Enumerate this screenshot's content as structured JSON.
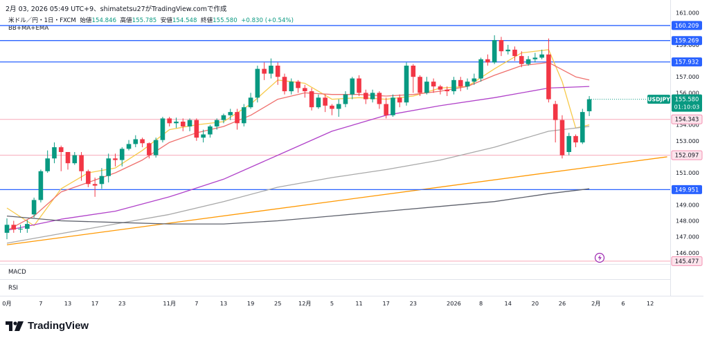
{
  "header": {
    "snapshot": "2月 03, 2026 05:49 UTC+9、shimatetsu27がTradingView.comで作成"
  },
  "symbol": {
    "name": "米ドル／円・1日・FXCM",
    "open_label": "始値",
    "open": "154.846",
    "high_label": "高値",
    "high": "155.785",
    "low_label": "安値",
    "low": "154.548",
    "close_label": "終値",
    "close": "155.580",
    "change": "+0.830 (+0.54%)"
  },
  "indicator_label": "BB+MA+EMA",
  "panes": {
    "macd": "MACD",
    "rsi": "RSI"
  },
  "price_tag": {
    "symbol": "USDJPY",
    "price": "155.580",
    "countdown": "01:10:03"
  },
  "footer": {
    "brand": "TradingView"
  },
  "colors": {
    "up": "#089981",
    "down": "#f23645",
    "blue_line": "#2962ff",
    "pink_line": "#f7a8b8",
    "ma_yellow": "#f7c948",
    "ema_salmon": "#ef6f6c",
    "ma_purple": "#b041c9",
    "ma_gray": "#a8a8a8",
    "ma_dark": "#5d606b",
    "trend_orange": "#ff9800"
  },
  "chart_data": {
    "type": "candlestick",
    "ylim": [
      145.3,
      161.2
    ],
    "y_ticks": [
      {
        "label": "161.000",
        "v": 161
      },
      {
        "label": "159.000",
        "v": 159
      },
      {
        "label": "157.000",
        "v": 157
      },
      {
        "label": "156.000",
        "v": 156
      },
      {
        "label": "154.000",
        "v": 154
      },
      {
        "label": "153.000",
        "v": 153
      },
      {
        "label": "151.000",
        "v": 151
      },
      {
        "label": "149.000",
        "v": 149
      },
      {
        "label": "148.000",
        "v": 148
      },
      {
        "label": "147.000",
        "v": 147
      },
      {
        "label": "146.000",
        "v": 146
      }
    ],
    "x_labels": [
      {
        "label": "0月",
        "i": 0
      },
      {
        "label": "7",
        "i": 5
      },
      {
        "label": "13",
        "i": 9
      },
      {
        "label": "17",
        "i": 13
      },
      {
        "label": "23",
        "i": 17
      },
      {
        "label": "11月",
        "i": 24
      },
      {
        "label": "7",
        "i": 28
      },
      {
        "label": "13",
        "i": 32
      },
      {
        "label": "19",
        "i": 36
      },
      {
        "label": "25",
        "i": 40
      },
      {
        "label": "12月",
        "i": 44
      },
      {
        "label": "5",
        "i": 48
      },
      {
        "label": "11",
        "i": 52
      },
      {
        "label": "17",
        "i": 56
      },
      {
        "label": "23",
        "i": 60
      },
      {
        "label": "2026",
        "i": 66
      },
      {
        "label": "8",
        "i": 70
      },
      {
        "label": "14",
        "i": 74
      },
      {
        "label": "20",
        "i": 78
      },
      {
        "label": "26",
        "i": 82
      },
      {
        "label": "2月",
        "i": 87
      },
      {
        "label": "6",
        "i": 91
      },
      {
        "label": "12",
        "i": 95
      }
    ],
    "horizontal_levels": [
      {
        "label": "160.209",
        "v": 160.209,
        "style": "blue"
      },
      {
        "label": "159.269",
        "v": 159.269,
        "style": "blue"
      },
      {
        "label": "157.932",
        "v": 157.932,
        "style": "blue"
      },
      {
        "label": "154.343",
        "v": 154.343,
        "style": "pink"
      },
      {
        "label": "152.097",
        "v": 152.097,
        "style": "pink"
      },
      {
        "label": "149.951",
        "v": 149.951,
        "style": "blue"
      },
      {
        "label": "145.477",
        "v": 145.477,
        "style": "pink"
      }
    ],
    "candles": [
      [
        147.25,
        147.75,
        146.85,
        148.15
      ],
      [
        147.75,
        147.45,
        147.25,
        148.0
      ],
      [
        147.5,
        147.5,
        147.25,
        147.75
      ],
      [
        147.5,
        147.8,
        147.25,
        148.05
      ],
      [
        148.4,
        149.3,
        148.2,
        149.45
      ],
      [
        149.3,
        151.1,
        149.15,
        151.2
      ],
      [
        151.1,
        151.9,
        151.0,
        152.4
      ],
      [
        151.9,
        152.6,
        151.6,
        152.9
      ],
      [
        152.6,
        152.3,
        151.1,
        152.7
      ],
      [
        152.3,
        151.6,
        151.2,
        152.3
      ],
      [
        151.6,
        152.1,
        151.5,
        152.3
      ],
      [
        152.1,
        151.1,
        150.5,
        152.3
      ],
      [
        151.1,
        150.3,
        150.1,
        151.2
      ],
      [
        150.3,
        150.2,
        149.5,
        150.7
      ],
      [
        150.3,
        150.8,
        150.0,
        151.3
      ],
      [
        150.8,
        151.9,
        150.4,
        152.2
      ],
      [
        151.9,
        151.8,
        151.4,
        152.2
      ],
      [
        151.8,
        152.5,
        151.4,
        152.6
      ],
      [
        152.5,
        152.8,
        152.4,
        153.05
      ],
      [
        152.8,
        153.1,
        152.6,
        153.35
      ],
      [
        153.1,
        152.85,
        152.6,
        153.2
      ],
      [
        152.85,
        152.1,
        151.9,
        152.9
      ],
      [
        152.1,
        153.05,
        151.95,
        153.2
      ],
      [
        153.05,
        154.4,
        152.9,
        154.5
      ],
      [
        154.4,
        154.1,
        153.9,
        154.5
      ],
      [
        154.1,
        154.2,
        153.8,
        154.45
      ],
      [
        154.2,
        153.9,
        153.6,
        154.4
      ],
      [
        153.9,
        154.3,
        153.6,
        154.4
      ],
      [
        154.3,
        153.2,
        153.0,
        154.4
      ],
      [
        153.2,
        153.4,
        152.9,
        153.7
      ],
      [
        153.4,
        153.9,
        153.2,
        154.0
      ],
      [
        153.9,
        154.3,
        153.7,
        154.4
      ],
      [
        154.3,
        154.6,
        154.1,
        154.7
      ],
      [
        154.6,
        154.8,
        154.3,
        155.0
      ],
      [
        154.8,
        154.1,
        153.7,
        155.0
      ],
      [
        154.1,
        155.1,
        153.9,
        155.3
      ],
      [
        155.1,
        155.7,
        155.0,
        156.0
      ],
      [
        155.7,
        157.5,
        155.4,
        157.7
      ],
      [
        157.5,
        157.2,
        156.8,
        157.9
      ],
      [
        157.2,
        157.7,
        156.9,
        158.15
      ],
      [
        157.7,
        157.0,
        156.5,
        157.9
      ],
      [
        157.0,
        156.1,
        155.9,
        157.2
      ],
      [
        156.1,
        156.7,
        155.9,
        156.9
      ],
      [
        156.7,
        156.3,
        156.0,
        156.8
      ],
      [
        156.3,
        156.1,
        155.7,
        156.5
      ],
      [
        156.1,
        155.1,
        154.9,
        156.3
      ],
      [
        155.1,
        155.7,
        155.0,
        155.9
      ],
      [
        155.7,
        155.2,
        154.8,
        155.9
      ],
      [
        155.2,
        155.0,
        154.6,
        155.3
      ],
      [
        155.0,
        155.3,
        154.5,
        155.6
      ],
      [
        155.3,
        155.9,
        155.1,
        156.1
      ],
      [
        155.9,
        156.9,
        155.6,
        157.0
      ],
      [
        156.9,
        156.0,
        155.8,
        157.1
      ],
      [
        156.0,
        155.6,
        155.3,
        156.2
      ],
      [
        155.6,
        156.0,
        155.4,
        156.2
      ],
      [
        156.0,
        155.3,
        155.0,
        156.1
      ],
      [
        155.3,
        154.6,
        154.4,
        155.7
      ],
      [
        154.6,
        155.7,
        154.5,
        155.9
      ],
      [
        155.7,
        155.4,
        155.1,
        155.9
      ],
      [
        155.4,
        157.7,
        155.2,
        157.9
      ],
      [
        157.7,
        157.0,
        156.0,
        157.8
      ],
      [
        157.0,
        156.0,
        155.8,
        157.1
      ],
      [
        156.0,
        156.7,
        155.9,
        157.0
      ],
      [
        156.7,
        156.4,
        156.0,
        156.9
      ],
      [
        156.4,
        156.2,
        155.9,
        156.5
      ],
      [
        156.2,
        156.1,
        155.8,
        156.4
      ],
      [
        156.1,
        156.8,
        155.9,
        157.0
      ],
      [
        156.8,
        156.4,
        156.1,
        157.0
      ],
      [
        156.4,
        156.7,
        156.2,
        156.9
      ],
      [
        156.7,
        156.9,
        156.5,
        157.2
      ],
      [
        156.9,
        158.1,
        156.7,
        158.2
      ],
      [
        158.1,
        157.9,
        157.7,
        158.4
      ],
      [
        157.9,
        159.3,
        157.8,
        159.6
      ],
      [
        159.3,
        158.6,
        158.3,
        159.5
      ],
      [
        158.6,
        158.7,
        158.4,
        159.0
      ],
      [
        158.7,
        158.3,
        158.0,
        158.9
      ],
      [
        158.3,
        157.8,
        157.6,
        158.6
      ],
      [
        157.8,
        158.1,
        157.7,
        158.3
      ],
      [
        158.1,
        158.2,
        157.9,
        158.5
      ],
      [
        158.2,
        158.4,
        158.1,
        158.7
      ],
      [
        158.4,
        155.6,
        155.4,
        159.4
      ],
      [
        155.3,
        154.3,
        152.9,
        155.5
      ],
      [
        154.3,
        152.1,
        151.9,
        154.6
      ],
      [
        152.3,
        153.3,
        152.1,
        153.5
      ],
      [
        153.3,
        152.9,
        152.6,
        153.4
      ],
      [
        152.9,
        154.8,
        152.8,
        155.0
      ],
      [
        154.85,
        155.6,
        154.55,
        155.8
      ]
    ],
    "moving_averages": [
      {
        "id": "ma_yellow",
        "points": [
          [
            0,
            148.8
          ],
          [
            4,
            147.7
          ],
          [
            8,
            150.0
          ],
          [
            12,
            151.0
          ],
          [
            16,
            151.3
          ],
          [
            20,
            152.4
          ],
          [
            24,
            153.7
          ],
          [
            28,
            154.0
          ],
          [
            32,
            154.2
          ],
          [
            36,
            155.3
          ],
          [
            40,
            156.8
          ],
          [
            44,
            156.6
          ],
          [
            48,
            155.6
          ],
          [
            52,
            155.7
          ],
          [
            56,
            155.6
          ],
          [
            60,
            155.8
          ],
          [
            64,
            156.3
          ],
          [
            68,
            156.4
          ],
          [
            72,
            157.5
          ],
          [
            76,
            158.5
          ],
          [
            80,
            158.7
          ],
          [
            82,
            156.7
          ],
          [
            84,
            153.8
          ],
          [
            86,
            154.0
          ]
        ]
      },
      {
        "id": "ema_salmon",
        "points": [
          [
            0,
            147.4
          ],
          [
            4,
            148.3
          ],
          [
            8,
            149.8
          ],
          [
            12,
            150.4
          ],
          [
            16,
            151.0
          ],
          [
            20,
            151.8
          ],
          [
            24,
            152.9
          ],
          [
            28,
            153.5
          ],
          [
            32,
            153.9
          ],
          [
            36,
            154.6
          ],
          [
            40,
            155.6
          ],
          [
            44,
            156.0
          ],
          [
            48,
            155.9
          ],
          [
            52,
            155.9
          ],
          [
            56,
            155.8
          ],
          [
            60,
            155.9
          ],
          [
            64,
            156.1
          ],
          [
            68,
            156.4
          ],
          [
            72,
            157.1
          ],
          [
            76,
            157.7
          ],
          [
            80,
            157.9
          ],
          [
            84,
            157.0
          ],
          [
            86,
            156.8
          ]
        ]
      },
      {
        "id": "ma_purple",
        "points": [
          [
            0,
            147.4
          ],
          [
            8,
            148.1
          ],
          [
            16,
            148.6
          ],
          [
            24,
            149.5
          ],
          [
            32,
            150.6
          ],
          [
            40,
            152.1
          ],
          [
            48,
            153.6
          ],
          [
            56,
            154.6
          ],
          [
            64,
            155.2
          ],
          [
            72,
            155.7
          ],
          [
            80,
            156.3
          ],
          [
            86,
            156.4
          ]
        ]
      },
      {
        "id": "ma_gray",
        "points": [
          [
            0,
            146.6
          ],
          [
            8,
            147.2
          ],
          [
            16,
            147.8
          ],
          [
            24,
            148.4
          ],
          [
            32,
            149.2
          ],
          [
            40,
            150.1
          ],
          [
            48,
            150.7
          ],
          [
            56,
            151.2
          ],
          [
            64,
            151.8
          ],
          [
            72,
            152.6
          ],
          [
            80,
            153.6
          ],
          [
            86,
            153.9
          ]
        ]
      },
      {
        "id": "ma_dark",
        "points": [
          [
            0,
            148.3
          ],
          [
            8,
            148.0
          ],
          [
            16,
            147.9
          ],
          [
            24,
            147.8
          ],
          [
            32,
            147.8
          ],
          [
            40,
            148.0
          ],
          [
            48,
            148.3
          ],
          [
            56,
            148.6
          ],
          [
            64,
            148.9
          ],
          [
            72,
            149.2
          ],
          [
            80,
            149.7
          ],
          [
            86,
            150.0
          ]
        ]
      }
    ],
    "trendline": {
      "from": [
        0,
        146.5
      ],
      "to": [
        97.5,
        152.0
      ]
    }
  }
}
